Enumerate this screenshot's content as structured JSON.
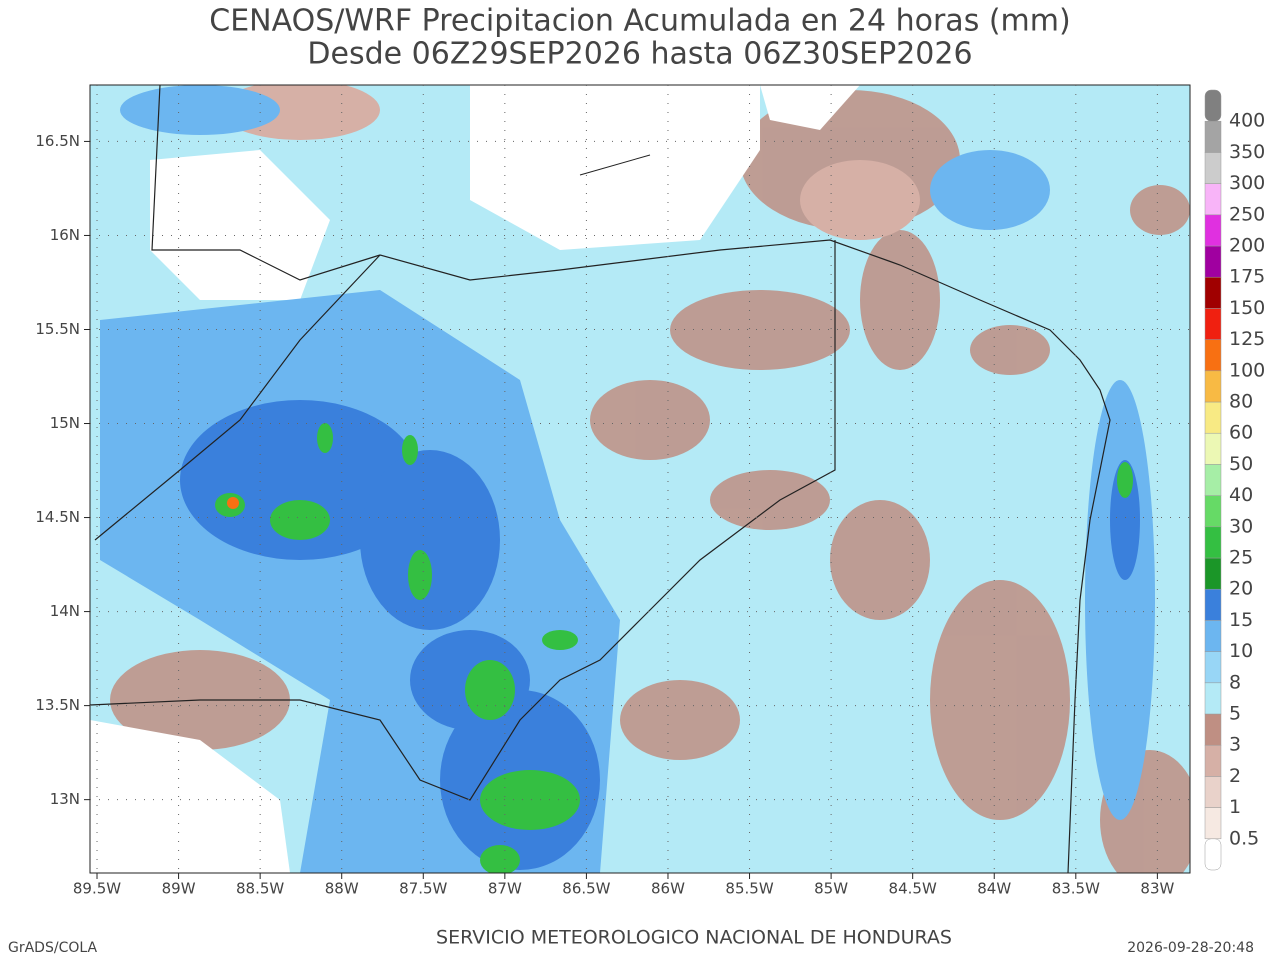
{
  "header": {
    "title": "CENAOS/WRF Precipitacion Acumulada en 24 horas (mm)",
    "subtitle": "Desde 06Z29SEP2026 hasta 06Z30SEP2026"
  },
  "map": {
    "xlim": [
      -89.543,
      -82.8
    ],
    "ylim": [
      12.61,
      16.8
    ],
    "xticks": [
      {
        "value": -89.5,
        "label": "89.5W"
      },
      {
        "value": -89,
        "label": "89W"
      },
      {
        "value": -88.5,
        "label": "88.5W"
      },
      {
        "value": -88,
        "label": "88W"
      },
      {
        "value": -87.5,
        "label": "87.5W"
      },
      {
        "value": -87,
        "label": "87W"
      },
      {
        "value": -86.5,
        "label": "86.5W"
      },
      {
        "value": -86,
        "label": "86W"
      },
      {
        "value": -85.5,
        "label": "85.5W"
      },
      {
        "value": -85,
        "label": "85W"
      },
      {
        "value": -84.5,
        "label": "84.5W"
      },
      {
        "value": -84,
        "label": "84W"
      },
      {
        "value": -83.5,
        "label": "83.5W"
      },
      {
        "value": -83,
        "label": "83W"
      }
    ],
    "yticks": [
      {
        "value": 13,
        "label": "13N"
      },
      {
        "value": 13.5,
        "label": "13.5N"
      },
      {
        "value": 14,
        "label": "14N"
      },
      {
        "value": 14.5,
        "label": "14.5N"
      },
      {
        "value": 15,
        "label": "15N"
      },
      {
        "value": 15.5,
        "label": "15.5N"
      },
      {
        "value": 16,
        "label": "16N"
      },
      {
        "value": 16.5,
        "label": "16.5N"
      }
    ]
  },
  "colorbar": {
    "levels": [
      0.5,
      1,
      2,
      3,
      5,
      8,
      10,
      15,
      20,
      25,
      30,
      40,
      50,
      60,
      80,
      100,
      125,
      150,
      175,
      200,
      250,
      300,
      350,
      400
    ],
    "colors": [
      "#ffffff",
      "#f6e9e2",
      "#e9d2ca",
      "#d6b0a6",
      "#bf8f83",
      "#b4eaf6",
      "#98d6f6",
      "#6cb6f0",
      "#3a80dc",
      "#1b9628",
      "#34bf42",
      "#66da66",
      "#a6eea6",
      "#ecf8b4",
      "#f8ea84",
      "#f8ba44",
      "#f87012",
      "#f02010",
      "#a00000",
      "#a000a0",
      "#e030e0",
      "#f8b4f8",
      "#cccccc",
      "#a4a4a4",
      "#808080"
    ]
  },
  "footer": {
    "left": "GrADS/COLA",
    "center": "SERVICIO METEOROLOGICO NACIONAL DE HONDURAS",
    "right": "2026-09-28-20:48"
  }
}
